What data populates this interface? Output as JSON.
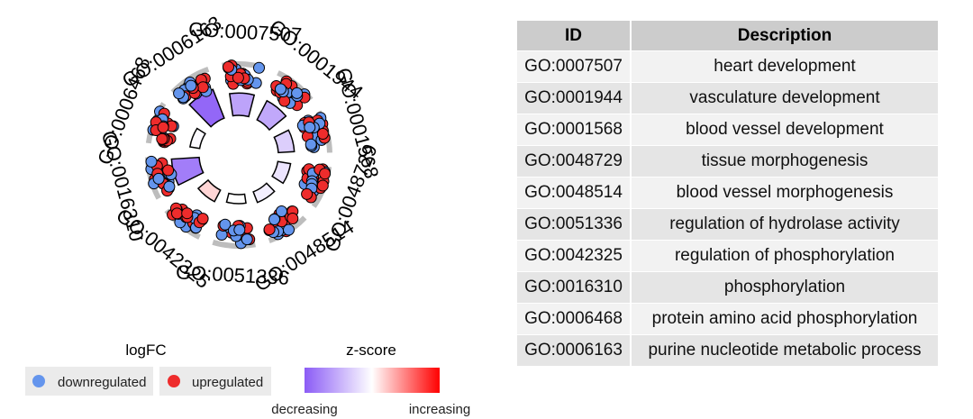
{
  "chart_data": {
    "type": "circular-go-plot",
    "terms": [
      {
        "id": "GO:0007507",
        "description": "heart development",
        "zscore": -1.7
      },
      {
        "id": "GO:0001944",
        "description": "vasculature development",
        "zscore": -1.6
      },
      {
        "id": "GO:0001568",
        "description": "blood vessel development",
        "zscore": -0.9
      },
      {
        "id": "GO:0048729",
        "description": "tissue morphogenesis",
        "zscore": -0.5
      },
      {
        "id": "GO:0048514",
        "description": "blood vessel morphogenesis",
        "zscore": -0.3
      },
      {
        "id": "GO:0051336",
        "description": "regulation of hydrolase activity",
        "zscore": 0.0
      },
      {
        "id": "GO:0042325",
        "description": "regulation of phosphorylation",
        "zscore": 0.5
      },
      {
        "id": "GO:0016310",
        "description": "phosphorylation",
        "zscore": -2.4
      },
      {
        "id": "GO:0006468",
        "description": "protein amino acid phosphorylation",
        "zscore": -0.1
      },
      {
        "id": "GO:0006163",
        "description": "purine nucleotide metabolic process",
        "zscore": -2.8
      }
    ],
    "outer_labels": [
      "GO:0007507",
      "GO:0001944",
      "GO:0001568",
      "GO:0048729",
      "GO:0048514",
      "GO:0051336",
      "GO:0042325",
      "GO:0016310",
      "GO:0006468",
      "GO:0006163"
    ],
    "counts": {
      "up": [
        12,
        10,
        10,
        12,
        11,
        8,
        14,
        10,
        13,
        9
      ],
      "down": [
        10,
        12,
        11,
        9,
        8,
        11,
        8,
        12,
        9,
        10
      ]
    },
    "legend": {
      "logfc_title": "logFC",
      "down_label": "downregulated",
      "up_label": "upregulated",
      "zscore_title": "z-score",
      "decreasing_label": "decreasing",
      "increasing_label": "increasing"
    },
    "colors": {
      "down": "#6495ED",
      "up": "#EE2C2C",
      "grey": "#bdbdbd",
      "low": "#8B5CF6",
      "mid": "#ffffff",
      "high": "#FF0000"
    }
  },
  "table": {
    "headers": [
      "ID",
      "Description"
    ],
    "rows": [
      [
        "GO:0007507",
        "heart development"
      ],
      [
        "GO:0001944",
        "vasculature development"
      ],
      [
        "GO:0001568",
        "blood vessel development"
      ],
      [
        "GO:0048729",
        "tissue morphogenesis"
      ],
      [
        "GO:0048514",
        "blood vessel morphogenesis"
      ],
      [
        "GO:0051336",
        "regulation of hydrolase activity"
      ],
      [
        "GO:0042325",
        "regulation of phosphorylation"
      ],
      [
        "GO:0016310",
        "phosphorylation"
      ],
      [
        "GO:0006468",
        "protein amino acid phosphorylation"
      ],
      [
        "GO:0006163",
        "purine nucleotide metabolic process"
      ]
    ]
  }
}
